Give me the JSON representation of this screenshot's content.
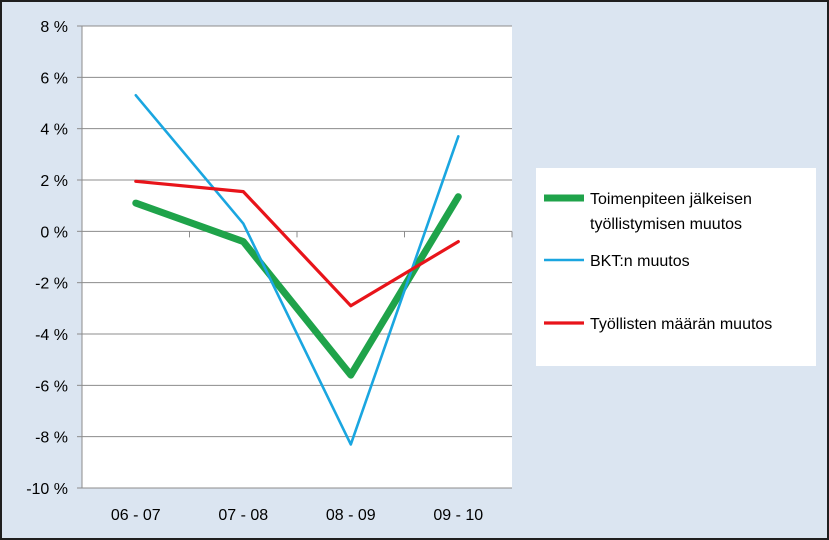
{
  "chart_data": {
    "type": "line",
    "title": "",
    "xlabel": "",
    "ylabel": "",
    "categories": [
      "06 - 07",
      "07 - 08",
      "08 - 09",
      "09 - 10"
    ],
    "ylim": [
      -10,
      8
    ],
    "ytick_step": 2,
    "ytick_labels": [
      "8 %",
      "6 %",
      "4 %",
      "2 %",
      "0 %",
      "-2 %",
      "-4 %",
      "-6 %",
      "-8 %",
      "-10 %"
    ],
    "grid": "horizontal",
    "legend_position": "right",
    "series": [
      {
        "name_lines": [
          "Toimenpiteen jälkeisen",
          "työllistymisen muutos"
        ],
        "values": [
          1.1,
          -0.4,
          -5.6,
          1.35
        ],
        "color": "#1fa34a",
        "width": "thick"
      },
      {
        "name_lines": [
          "BKT:n muutos"
        ],
        "values": [
          5.3,
          0.3,
          -8.3,
          3.7
        ],
        "color": "#1aa6e0",
        "width": "thin"
      },
      {
        "name_lines": [
          "Työllisten määrän muutos"
        ],
        "values": [
          1.95,
          1.55,
          -2.9,
          -0.4
        ],
        "color": "#e8141a",
        "width": "medium"
      }
    ]
  }
}
